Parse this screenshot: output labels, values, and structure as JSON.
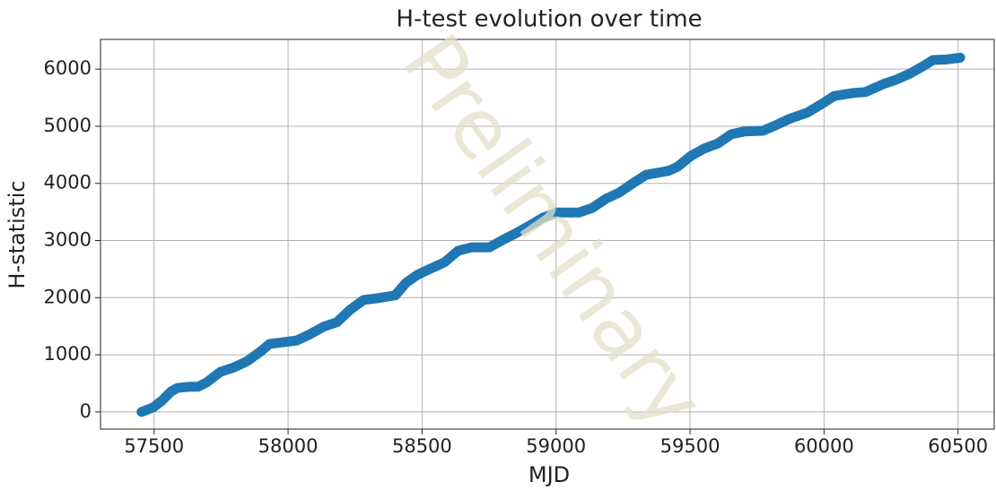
{
  "chart_data": {
    "type": "line",
    "title": "H-test evolution over time",
    "xlabel": "MJD",
    "ylabel": "H-statistic",
    "watermark": "Preliminary",
    "x": [
      57453,
      57497,
      57530,
      57564,
      57587,
      57630,
      57664,
      57697,
      57747,
      57798,
      57848,
      57898,
      57931,
      57982,
      58032,
      58082,
      58132,
      58182,
      58232,
      58282,
      58333,
      58400,
      58440,
      58483,
      58533,
      58584,
      58634,
      58684,
      58751,
      58801,
      58851,
      58901,
      58951,
      59002,
      59085,
      59135,
      59186,
      59236,
      59286,
      59336,
      59420,
      59453,
      59503,
      59553,
      59604,
      59654,
      59704,
      59771,
      59821,
      59871,
      59938,
      59988,
      60038,
      60105,
      60155,
      60222,
      60272,
      60324,
      60373,
      60406,
      60458,
      60508
    ],
    "series": [
      {
        "name": "H-statistic",
        "color": "#1f77b4",
        "values": [
          0,
          80,
          200,
          360,
          420,
          440,
          440,
          520,
          700,
          780,
          890,
          1060,
          1190,
          1220,
          1250,
          1360,
          1490,
          1570,
          1790,
          1960,
          1990,
          2040,
          2260,
          2400,
          2510,
          2620,
          2820,
          2880,
          2880,
          3010,
          3130,
          3260,
          3400,
          3490,
          3490,
          3570,
          3730,
          3840,
          4000,
          4150,
          4220,
          4290,
          4480,
          4610,
          4700,
          4860,
          4910,
          4920,
          5020,
          5130,
          5240,
          5380,
          5530,
          5580,
          5600,
          5740,
          5820,
          5930,
          6060,
          6160,
          6170,
          6200
        ]
      }
    ],
    "xlim": [
      57300,
      60635
    ],
    "xticks": [
      57500,
      58000,
      58500,
      59000,
      59500,
      60000,
      60500
    ],
    "ylim": [
      -300,
      6520
    ],
    "yticks": [
      0,
      1000,
      2000,
      3000,
      4000,
      5000,
      6000
    ],
    "grid": true
  }
}
